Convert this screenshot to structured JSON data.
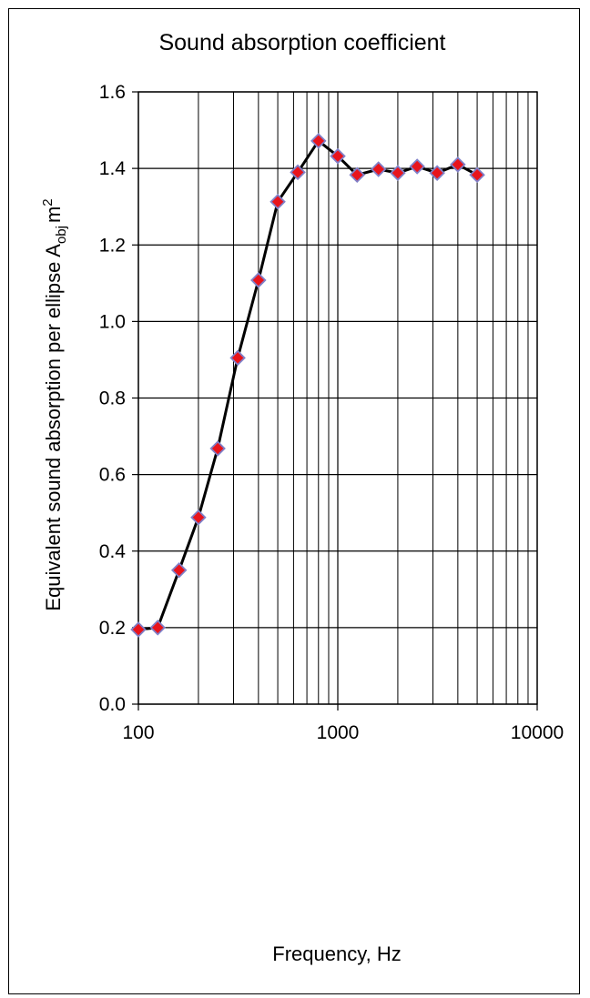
{
  "chart_data": {
    "type": "line",
    "title": "Sound absorption coefficient",
    "xlabel": "Frequency, Hz",
    "ylabel": {
      "main": "Equivalent  sound absorption per ellipse A",
      "subscript": "obj",
      "unit": "m",
      "superscript": "2"
    },
    "x_scale": "log",
    "xlim": [
      100,
      10000
    ],
    "ylim": [
      0.0,
      1.6
    ],
    "x_ticks": [
      "100",
      "1000",
      "10000"
    ],
    "y_ticks": [
      "0.0",
      "0.2",
      "0.4",
      "0.6",
      "0.8",
      "1.0",
      "1.2",
      "1.4",
      "1.6"
    ],
    "grid": true,
    "series": [
      {
        "line_color": "#000000",
        "marker": "diamond",
        "marker_color": "#e8141c",
        "marker_edge_color": "#8080c8",
        "x": [
          100,
          125,
          160,
          200,
          250,
          315,
          400,
          500,
          630,
          800,
          1000,
          1250,
          1600,
          2000,
          2500,
          3150,
          4000,
          5000
        ],
        "values": [
          0.195,
          0.2,
          0.35,
          0.488,
          0.668,
          0.905,
          1.108,
          1.313,
          1.39,
          1.472,
          1.432,
          1.383,
          1.398,
          1.388,
          1.405,
          1.388,
          1.41,
          1.383
        ]
      }
    ]
  }
}
